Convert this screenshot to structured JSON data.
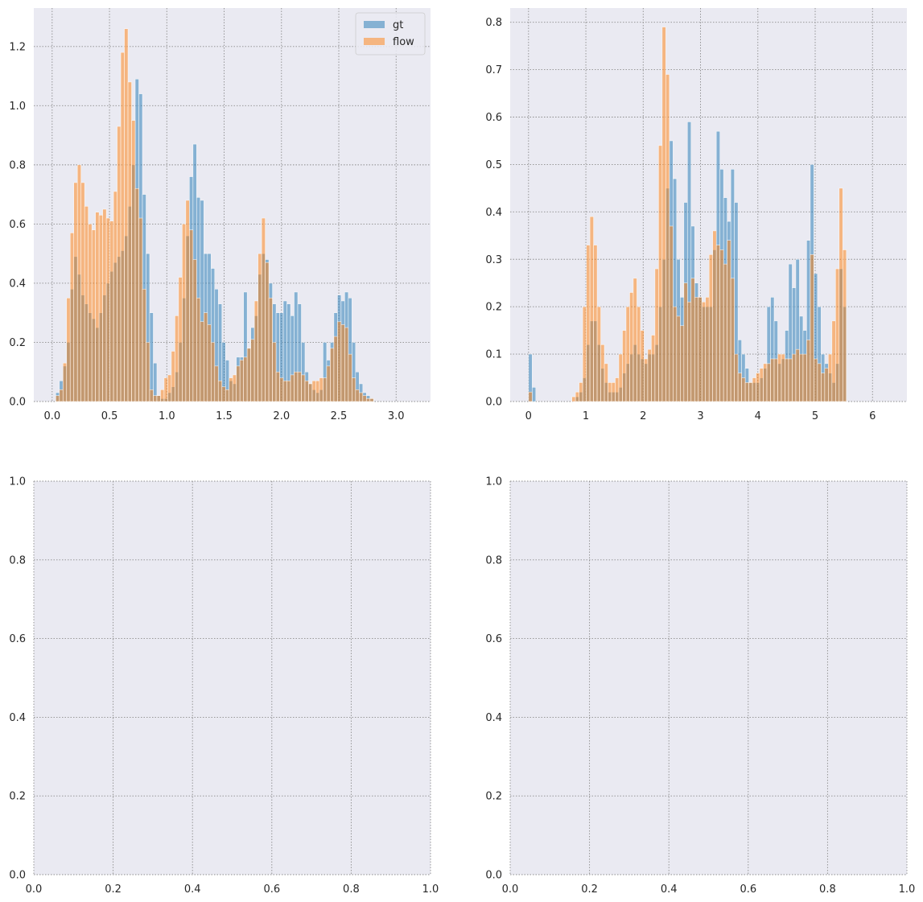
{
  "colors": {
    "axes_face": "#eaeaf2",
    "grid": "#8c8c8c",
    "gt": "#1f77b4",
    "flow": "#ff7f0e"
  },
  "chart_data": [
    {
      "type": "bar",
      "subplot": "top-left",
      "grid": true,
      "legend": {
        "placement": "top-right",
        "entries": [
          "gt",
          "flow"
        ]
      },
      "xlim": [
        -0.16,
        3.3
      ],
      "ylim": [
        0,
        1.33
      ],
      "xticks": [
        0.0,
        0.5,
        1.0,
        1.5,
        2.0,
        2.5,
        3.0
      ],
      "xtick_labels": [
        "0.0",
        "0.5",
        "1.0",
        "1.5",
        "2.0",
        "2.5",
        "3.0"
      ],
      "yticks": [
        0.0,
        0.2,
        0.4,
        0.6,
        0.8,
        1.0,
        1.2
      ],
      "ytick_labels": [
        "0.0",
        "0.2",
        "0.4",
        "0.6",
        "0.8",
        "1.0",
        "1.2"
      ],
      "bins": {
        "start": 0.0,
        "width": 0.0315,
        "count": 100
      },
      "series": [
        {
          "name": "gt",
          "values": [
            0,
            0.03,
            0.07,
            0.12,
            0.2,
            0.38,
            0.49,
            0.43,
            0.36,
            0.33,
            0.3,
            0.28,
            0.25,
            0.3,
            0.36,
            0.4,
            0.44,
            0.47,
            0.49,
            0.51,
            0.56,
            0.66,
            0.8,
            1.09,
            1.04,
            0.7,
            0.5,
            0.3,
            0.13,
            0.02,
            0.01,
            0.01,
            0.03,
            0.05,
            0.1,
            0.2,
            0.35,
            0.56,
            0.76,
            0.87,
            0.69,
            0.68,
            0.5,
            0.5,
            0.45,
            0.38,
            0.33,
            0.2,
            0.14,
            0.07,
            0.06,
            0.15,
            0.15,
            0.37,
            0.18,
            0.25,
            0.29,
            0.43,
            0.5,
            0.48,
            0.4,
            0.33,
            0.3,
            0.3,
            0.34,
            0.33,
            0.29,
            0.37,
            0.33,
            0.2,
            0.1,
            0.06,
            0.04,
            0.03,
            0.04,
            0.2,
            0.14,
            0.2,
            0.3,
            0.36,
            0.34,
            0.37,
            0.35,
            0.2,
            0.1,
            0.06,
            0.03,
            0.02,
            0.01,
            0,
            0,
            0,
            0,
            0,
            0,
            0,
            0,
            0,
            0,
            0
          ]
        },
        {
          "name": "flow",
          "values": [
            0,
            0.02,
            0.04,
            0.13,
            0.35,
            0.57,
            0.74,
            0.8,
            0.74,
            0.66,
            0.6,
            0.58,
            0.64,
            0.63,
            0.65,
            0.62,
            0.61,
            0.71,
            0.93,
            1.18,
            1.26,
            1.08,
            0.95,
            0.72,
            0.62,
            0.38,
            0.2,
            0.04,
            0.02,
            0.02,
            0.04,
            0.08,
            0.09,
            0.17,
            0.29,
            0.42,
            0.6,
            0.68,
            0.58,
            0.48,
            0.35,
            0.27,
            0.3,
            0.26,
            0.2,
            0.12,
            0.07,
            0.05,
            0.04,
            0.08,
            0.09,
            0.12,
            0.14,
            0.15,
            0.18,
            0.21,
            0.34,
            0.5,
            0.62,
            0.47,
            0.35,
            0.2,
            0.1,
            0.08,
            0.07,
            0.07,
            0.09,
            0.1,
            0.1,
            0.09,
            0.07,
            0.06,
            0.07,
            0.07,
            0.08,
            0.08,
            0.12,
            0.18,
            0.22,
            0.27,
            0.26,
            0.25,
            0.16,
            0.08,
            0.04,
            0.03,
            0.02,
            0.01,
            0.01,
            0,
            0,
            0,
            0,
            0,
            0,
            0,
            0,
            0,
            0,
            0
          ]
        }
      ]
    },
    {
      "type": "bar",
      "subplot": "top-right",
      "grid": true,
      "xlim": [
        -0.32,
        6.6
      ],
      "ylim": [
        0,
        0.83
      ],
      "xticks": [
        0,
        1,
        2,
        3,
        4,
        5,
        6
      ],
      "xtick_labels": [
        "0",
        "1",
        "2",
        "3",
        "4",
        "5",
        "6"
      ],
      "yticks": [
        0.0,
        0.1,
        0.2,
        0.3,
        0.4,
        0.5,
        0.6,
        0.7,
        0.8
      ],
      "ytick_labels": [
        "0.0",
        "0.1",
        "0.2",
        "0.3",
        "0.4",
        "0.5",
        "0.6",
        "0.7",
        "0.8"
      ],
      "bins": {
        "start": 0.0,
        "width": 0.063,
        "count": 100
      },
      "series": [
        {
          "name": "gt",
          "values": [
            0.1,
            0.03,
            0,
            0,
            0,
            0,
            0,
            0,
            0,
            0,
            0,
            0,
            0,
            0.01,
            0.02,
            0.05,
            0.12,
            0.17,
            0.17,
            0.12,
            0.07,
            0.04,
            0.02,
            0.02,
            0.02,
            0.03,
            0.06,
            0.08,
            0.1,
            0.12,
            0.1,
            0.09,
            0.08,
            0.1,
            0.1,
            0.12,
            0.2,
            0.3,
            0.45,
            0.55,
            0.47,
            0.3,
            0.22,
            0.42,
            0.59,
            0.37,
            0.25,
            0.22,
            0.2,
            0.2,
            0.2,
            0.32,
            0.57,
            0.49,
            0.43,
            0.38,
            0.49,
            0.42,
            0.13,
            0.1,
            0.07,
            0.04,
            0.04,
            0.04,
            0.05,
            0.07,
            0.2,
            0.22,
            0.17,
            0.08,
            0.09,
            0.15,
            0.29,
            0.24,
            0.3,
            0.18,
            0.15,
            0.34,
            0.5,
            0.27,
            0.2,
            0.1,
            0.08,
            0.06,
            0.04,
            0.08,
            0.28,
            0.2,
            0,
            0,
            0,
            0,
            0,
            0,
            0,
            0,
            0,
            0,
            0,
            0
          ]
        },
        {
          "name": "flow",
          "values": [
            0.02,
            0,
            0,
            0,
            0,
            0,
            0,
            0,
            0,
            0,
            0,
            0,
            0.01,
            0.02,
            0.04,
            0.2,
            0.33,
            0.39,
            0.33,
            0.2,
            0.12,
            0.08,
            0.04,
            0.04,
            0.05,
            0.1,
            0.15,
            0.2,
            0.23,
            0.26,
            0.2,
            0.15,
            0.09,
            0.11,
            0.14,
            0.28,
            0.54,
            0.79,
            0.69,
            0.37,
            0.2,
            0.18,
            0.16,
            0.25,
            0.21,
            0.26,
            0.22,
            0.22,
            0.21,
            0.22,
            0.31,
            0.36,
            0.33,
            0.32,
            0.29,
            0.34,
            0.26,
            0.1,
            0.06,
            0.05,
            0.04,
            0.04,
            0.05,
            0.06,
            0.07,
            0.08,
            0.08,
            0.09,
            0.09,
            0.1,
            0.1,
            0.09,
            0.09,
            0.1,
            0.11,
            0.1,
            0.1,
            0.13,
            0.31,
            0.09,
            0.08,
            0.06,
            0.07,
            0.1,
            0.17,
            0.28,
            0.45,
            0.32,
            0,
            0,
            0,
            0,
            0,
            0,
            0,
            0,
            0,
            0,
            0,
            0
          ]
        }
      ]
    },
    {
      "type": "bar",
      "subplot": "bottom-left",
      "grid": true,
      "xlim": [
        0,
        1
      ],
      "ylim": [
        0,
        1
      ],
      "xticks": [
        0.0,
        0.2,
        0.4,
        0.6,
        0.8,
        1.0
      ],
      "xtick_labels": [
        "0.0",
        "0.2",
        "0.4",
        "0.6",
        "0.8",
        "1.0"
      ],
      "yticks": [
        0.0,
        0.2,
        0.4,
        0.6,
        0.8,
        1.0
      ],
      "ytick_labels": [
        "0.0",
        "0.2",
        "0.4",
        "0.6",
        "0.8",
        "1.0"
      ],
      "series": []
    },
    {
      "type": "bar",
      "subplot": "bottom-right",
      "grid": true,
      "xlim": [
        0,
        1
      ],
      "ylim": [
        0,
        1
      ],
      "xticks": [
        0.0,
        0.2,
        0.4,
        0.6,
        0.8,
        1.0
      ],
      "xtick_labels": [
        "0.0",
        "0.2",
        "0.4",
        "0.6",
        "0.8",
        "1.0"
      ],
      "yticks": [
        0.0,
        0.2,
        0.4,
        0.6,
        0.8,
        1.0
      ],
      "ytick_labels": [
        "0.0",
        "0.2",
        "0.4",
        "0.6",
        "0.8",
        "1.0"
      ],
      "series": []
    }
  ]
}
